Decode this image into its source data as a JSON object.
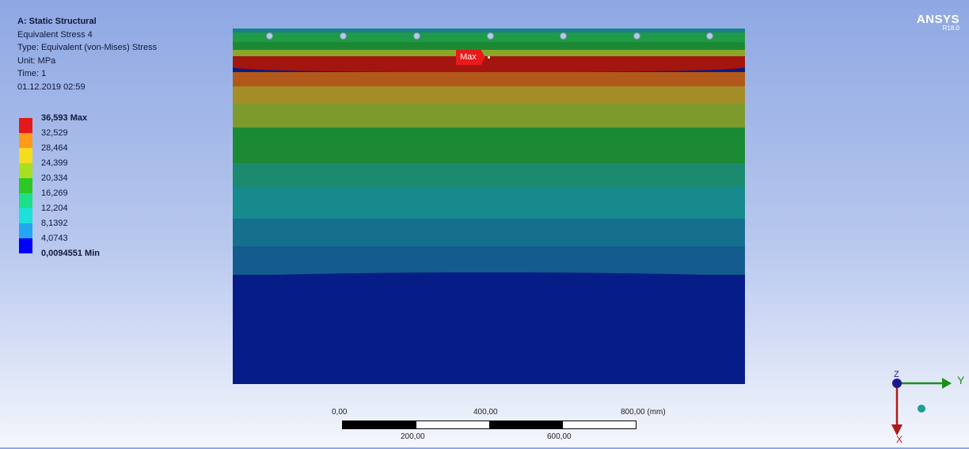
{
  "header": {
    "analysis": "A: Static Structural",
    "result_name": "Equivalent Stress 4",
    "type": "Type: Equivalent (von-Mises) Stress",
    "unit": "Unit: MPa",
    "time": "Time: 1",
    "date": "01.12.2019 02:59"
  },
  "legend": {
    "labels": [
      "36,593 Max",
      "32,529",
      "28,464",
      "24,399",
      "20,334",
      "16,269",
      "12,204",
      "8,1392",
      "4,0743",
      "0,0094551 Min"
    ],
    "colors": [
      "#e31a1a",
      "#ff9a1a",
      "#f5dc1f",
      "#a8e021",
      "#2ec826",
      "#1ce08a",
      "#1ee1dc",
      "#22a7f0",
      "#0000ff"
    ]
  },
  "brand": {
    "name": "ANSYS",
    "version": "R18.0"
  },
  "probe": {
    "max_label": "Max"
  },
  "scale": {
    "top_labels": [
      "0,00",
      "400,00",
      "800,00 (mm)"
    ],
    "bottom_labels": [
      "200,00",
      "600,00"
    ]
  },
  "triad": {
    "x": "X",
    "y": "Y",
    "z": "Z"
  },
  "contour_colors": {
    "top_edge": "#1a7f8c",
    "green_strip": "#1f9a46",
    "yellow_green": "#8aa72a",
    "red_max": "#a3150f",
    "orange": "#b1581a",
    "olive": "#a48c27",
    "olive_green": "#7d9a2c",
    "green": "#1c8a35",
    "teal_green": "#1b8a6f",
    "teal": "#168a8c",
    "blue_teal": "#15708e",
    "steel_blue": "#145c8d",
    "dark_blue": "#061c86"
  }
}
